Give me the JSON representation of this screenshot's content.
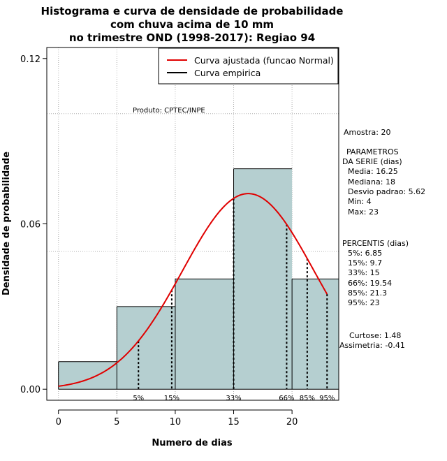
{
  "chart_data": {
    "type": "bar",
    "title_lines": [
      "Histograma e curva de densidade de probabilidade",
      "com chuva acima de 10 mm",
      "no trimestre OND (1998-2017): Regiao 94"
    ],
    "xlabel": "Numero de dias",
    "ylabel": "Densidade de probabilidade",
    "xlim": [
      -1,
      24
    ],
    "ylim": [
      -0.004,
      0.124
    ],
    "xticks": [
      "0",
      "5",
      "10",
      "15",
      "20"
    ],
    "yticks": [
      "0.00",
      "0.06",
      "0.12"
    ],
    "gridlines_x": [
      0,
      5,
      10,
      15,
      20
    ],
    "gridlines_y": [
      0.1,
      0.05
    ],
    "bins": [
      {
        "from": 0,
        "to": 5,
        "density": 0.01
      },
      {
        "from": 5,
        "to": 10,
        "density": 0.03
      },
      {
        "from": 10,
        "to": 15,
        "density": 0.04
      },
      {
        "from": 15,
        "to": 20,
        "density": 0.08
      },
      {
        "from": 20,
        "to": 24,
        "density": 0.04
      }
    ],
    "normal_curve": {
      "mean": 16.25,
      "sd": 5.62,
      "x_from": 0,
      "x_to": 23,
      "color": "#e00000"
    },
    "percentile_markers": [
      {
        "label": "5%",
        "x": 6.85
      },
      {
        "label": "15%",
        "x": 9.7
      },
      {
        "label": "33%",
        "x": 15
      },
      {
        "label": "66%",
        "x": 19.54
      },
      {
        "label": "85%",
        "x": 21.3
      },
      {
        "label": "95%",
        "x": 23
      }
    ],
    "legend": [
      {
        "label": "Curva ajustada (funcao Normal)",
        "color": "#e00000"
      },
      {
        "label": "Curva empirica",
        "color": "#000000"
      }
    ],
    "bar_color": "#b5cfd0"
  },
  "annotations": {
    "produto": "Produto: CPTEC/INPE",
    "amostra": "Amostra: 20",
    "parametros_title_1": "PARAMETROS",
    "parametros_title_2": "DA SERIE (dias)",
    "media": "Media: 16.25",
    "mediana": "Mediana: 18",
    "desvio": "Desvio padrao: 5.62",
    "min": "Min: 4",
    "max": "Max: 23",
    "percentis_title": "PERCENTIS (dias)",
    "p5": "5%: 6.85",
    "p15": "15%: 9.7",
    "p33": "33%: 15",
    "p66": "66%: 19.54",
    "p85": "85%: 21.3",
    "p95": "95%: 23",
    "curtose": "Curtose: 1.48",
    "assimetria": "Assimetria: -0.41"
  }
}
